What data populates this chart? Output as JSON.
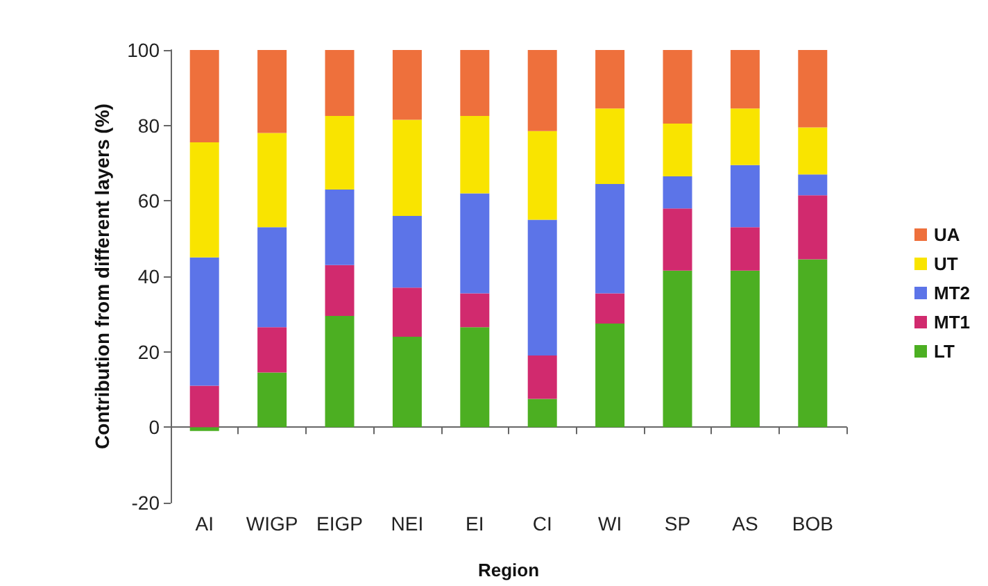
{
  "chart_data": {
    "type": "bar",
    "stacked": true,
    "xlabel": "Region",
    "ylabel": "Contribution from different layers (%)",
    "categories": [
      "AI",
      "WIGP",
      "EIGP",
      "NEI",
      "EI",
      "CI",
      "WI",
      "SP",
      "AS",
      "BOB"
    ],
    "series": [
      {
        "name": "LT",
        "color": "#4caf22",
        "values": [
          -1,
          14.5,
          29.5,
          24,
          26.5,
          7.5,
          27.5,
          41.5,
          41.5,
          44.5
        ]
      },
      {
        "name": "MT1",
        "color": "#d12a6e",
        "values": [
          11,
          12,
          13.5,
          13,
          9,
          11.5,
          8,
          16.5,
          11.5,
          17
        ]
      },
      {
        "name": "MT2",
        "color": "#5c74e8",
        "values": [
          34,
          26.5,
          20,
          19,
          26.5,
          36,
          29,
          8.5,
          16.5,
          5.5
        ]
      },
      {
        "name": "UT",
        "color": "#f9e400",
        "values": [
          30.5,
          25,
          19.5,
          25.5,
          20.5,
          23.5,
          20,
          14,
          15,
          12.5
        ]
      },
      {
        "name": "UA",
        "color": "#ee703c",
        "values": [
          24.5,
          22,
          17.5,
          18.5,
          17.5,
          21.5,
          15.5,
          19.5,
          15.5,
          20.5
        ]
      }
    ],
    "ylim": [
      -20,
      100
    ],
    "yticks": [
      -20,
      0,
      20,
      40,
      60,
      80,
      100
    ],
    "legend": "right"
  }
}
